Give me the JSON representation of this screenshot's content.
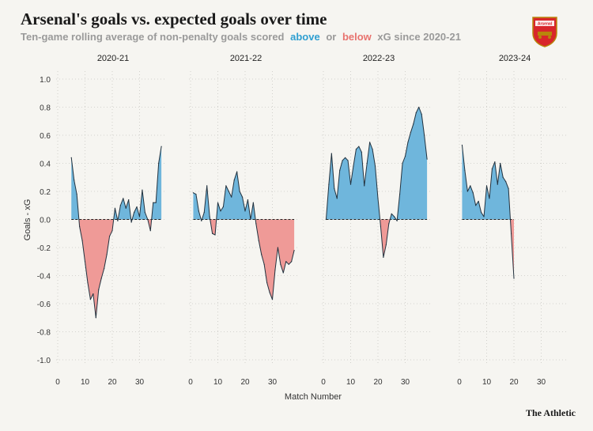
{
  "header": {
    "title": "Arsenal's goals vs. expected goals over time",
    "subtitle_pre": "Ten-game rolling average of non-penalty goals scored",
    "subtitle_above": "above",
    "subtitle_or": "or",
    "subtitle_below": "below",
    "subtitle_post": "xG since 2020-21",
    "badge_text": "Arsenal"
  },
  "credit": "The Athletic",
  "colors": {
    "above": "#6fb6dc",
    "below": "#ef9a97",
    "line": "#22323f",
    "grid": "#c9c9c3"
  },
  "chart_data": {
    "type": "area",
    "ylabel": "Goals - xG",
    "xlabel": "Match Number",
    "ylim": [
      -1.0,
      1.0
    ],
    "yticks": [
      -1.0,
      -0.8,
      -0.6,
      -0.4,
      -0.2,
      0.0,
      0.2,
      0.4,
      0.6,
      0.8,
      1.0
    ],
    "xticks": [
      0,
      10,
      20,
      30
    ],
    "grid": "dotted",
    "series": [
      {
        "name": "2020-21",
        "x": [
          5,
          6,
          7,
          8,
          9,
          10,
          11,
          12,
          13,
          14,
          15,
          16,
          17,
          18,
          19,
          20,
          21,
          22,
          23,
          24,
          25,
          26,
          27,
          28,
          29,
          30,
          31,
          32,
          33,
          34,
          35,
          36,
          37,
          38
        ],
        "values": [
          0.44,
          0.28,
          0.18,
          -0.05,
          -0.15,
          -0.3,
          -0.45,
          -0.57,
          -0.53,
          -0.7,
          -0.5,
          -0.42,
          -0.35,
          -0.25,
          -0.12,
          -0.08,
          0.08,
          -0.01,
          0.1,
          0.15,
          0.08,
          0.14,
          -0.02,
          0.05,
          0.09,
          0.02,
          0.21,
          0.05,
          0.0,
          -0.08,
          0.12,
          0.12,
          0.4,
          0.52
        ]
      },
      {
        "name": "2021-22",
        "x": [
          1,
          2,
          3,
          4,
          5,
          6,
          7,
          8,
          9,
          10,
          11,
          12,
          13,
          14,
          15,
          16,
          17,
          18,
          19,
          20,
          21,
          22,
          23,
          24,
          25,
          26,
          27,
          28,
          29,
          30,
          31,
          32,
          33,
          34,
          35,
          36,
          37,
          38
        ],
        "values": [
          0.19,
          0.18,
          0.06,
          -0.01,
          0.05,
          0.24,
          0.02,
          -0.1,
          -0.11,
          0.12,
          0.06,
          0.09,
          0.24,
          0.2,
          0.16,
          0.28,
          0.34,
          0.2,
          0.16,
          0.06,
          0.14,
          0.0,
          0.12,
          -0.03,
          -0.15,
          -0.25,
          -0.32,
          -0.45,
          -0.52,
          -0.57,
          -0.36,
          -0.2,
          -0.32,
          -0.38,
          -0.3,
          -0.32,
          -0.3,
          -0.22
        ]
      },
      {
        "name": "2022-23",
        "x": [
          1,
          2,
          3,
          4,
          5,
          6,
          7,
          8,
          9,
          10,
          11,
          12,
          13,
          14,
          15,
          16,
          17,
          18,
          19,
          20,
          21,
          22,
          23,
          24,
          25,
          26,
          27,
          28,
          29,
          30,
          31,
          32,
          33,
          34,
          35,
          36,
          37,
          38
        ],
        "values": [
          0.0,
          0.25,
          0.47,
          0.22,
          0.15,
          0.35,
          0.42,
          0.44,
          0.42,
          0.25,
          0.38,
          0.5,
          0.52,
          0.48,
          0.24,
          0.4,
          0.55,
          0.5,
          0.38,
          0.15,
          -0.05,
          -0.27,
          -0.18,
          -0.03,
          0.04,
          0.02,
          -0.01,
          0.18,
          0.4,
          0.45,
          0.55,
          0.62,
          0.68,
          0.76,
          0.8,
          0.75,
          0.6,
          0.43
        ]
      },
      {
        "name": "2023-24",
        "x": [
          1,
          2,
          3,
          4,
          5,
          6,
          7,
          8,
          9,
          10,
          11,
          12,
          13,
          14,
          15,
          16,
          17,
          18,
          19,
          20
        ],
        "values": [
          0.53,
          0.35,
          0.2,
          0.24,
          0.19,
          0.1,
          0.13,
          0.05,
          0.02,
          0.24,
          0.15,
          0.36,
          0.41,
          0.25,
          0.4,
          0.3,
          0.27,
          0.22,
          -0.1,
          -0.42
        ]
      }
    ]
  }
}
